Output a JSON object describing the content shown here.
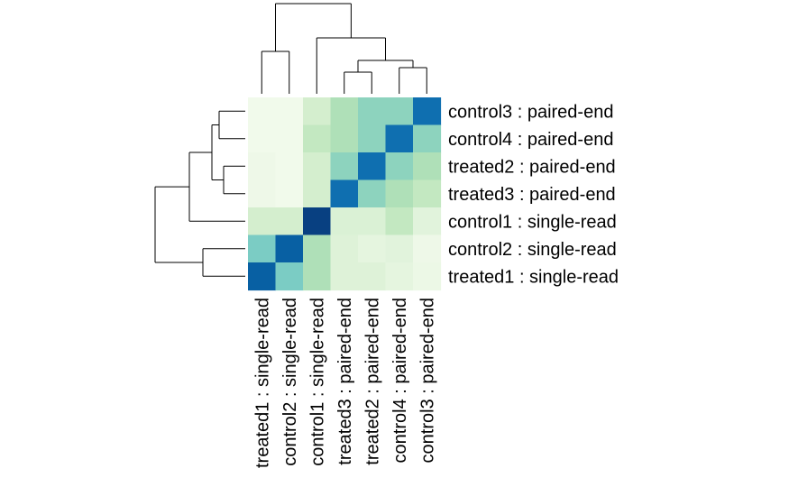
{
  "chart_data": {
    "type": "heatmap",
    "title": "",
    "xlabel": "",
    "ylabel": "",
    "x_labels": [
      "treated1 : single-read",
      "control2 : single-read",
      "control1 : single-read",
      "treated3 : paired-end",
      "treated2 : paired-end",
      "control4 : paired-end",
      "control3 : paired-end"
    ],
    "y_labels": [
      "control3 : paired-end",
      "control4 : paired-end",
      "treated2 : paired-end",
      "treated3 : paired-end",
      "control1 : single-read",
      "control2 : single-read",
      "treated1 : single-read"
    ],
    "values": [
      [
        0.03,
        0.03,
        0.2,
        0.35,
        0.45,
        0.45,
        0.85
      ],
      [
        0.03,
        0.03,
        0.28,
        0.35,
        0.45,
        0.85,
        0.45
      ],
      [
        0.05,
        0.03,
        0.2,
        0.45,
        0.85,
        0.45,
        0.35
      ],
      [
        0.05,
        0.03,
        0.2,
        0.85,
        0.45,
        0.35,
        0.28
      ],
      [
        0.2,
        0.2,
        1.0,
        0.16,
        0.16,
        0.28,
        0.12
      ],
      [
        0.5,
        0.9,
        0.35,
        0.14,
        0.1,
        0.12,
        0.05
      ],
      [
        0.9,
        0.5,
        0.35,
        0.14,
        0.14,
        0.1,
        0.06
      ]
    ],
    "colormap": {
      "low": "#f7fcf0",
      "stops": [
        "#f7fcf0",
        "#e0f3db",
        "#ccebc5",
        "#a8ddb5",
        "#7bccc4",
        "#4eb3d3",
        "#2b8cbe",
        "#0868ac",
        "#084081"
      ],
      "high": "#084081"
    },
    "dendrogram": {
      "linkage": [
        [
          "control3 : paired-end",
          "control4 : paired-end",
          0.29
        ],
        [
          "treated2 : paired-end",
          "treated3 : paired-end",
          0.24
        ],
        [
          "C34",
          "T23",
          0.37
        ],
        [
          "C34T23",
          "control1 : single-read",
          0.62
        ],
        [
          "control2 : single-read",
          "treated1 : single-read",
          0.47
        ],
        [
          "paired+c1",
          "single",
          1.0
        ]
      ]
    },
    "legend": "none",
    "grid": false
  }
}
